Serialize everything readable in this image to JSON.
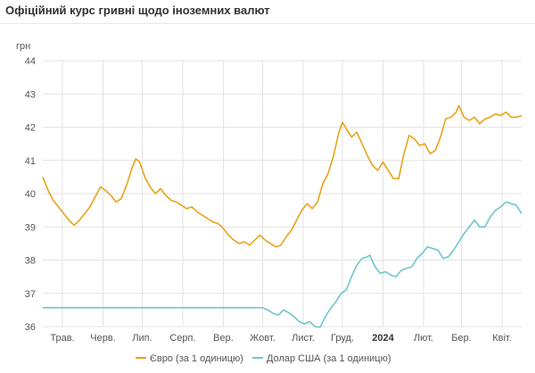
{
  "title": "Офіційний курс гривні щодо іноземних валют",
  "chart_data": {
    "type": "line",
    "ylabel": "грн",
    "ylim": [
      36,
      44
    ],
    "yticks": [
      36,
      37,
      38,
      39,
      40,
      41,
      42,
      43,
      44
    ],
    "xlim": [
      0,
      366
    ],
    "x_ticks": [
      {
        "x": 15,
        "label": "Трав.",
        "bold": false
      },
      {
        "x": 46,
        "label": "Черв.",
        "bold": false
      },
      {
        "x": 76,
        "label": "Лип.",
        "bold": false
      },
      {
        "x": 107,
        "label": "Серп.",
        "bold": false
      },
      {
        "x": 138,
        "label": "Вер.",
        "bold": false
      },
      {
        "x": 168,
        "label": "Жовт.",
        "bold": false
      },
      {
        "x": 199,
        "label": "Лист.",
        "bold": false
      },
      {
        "x": 229,
        "label": "Груд.",
        "bold": false
      },
      {
        "x": 260,
        "label": "2024",
        "bold": true
      },
      {
        "x": 291,
        "label": "Лют.",
        "bold": false
      },
      {
        "x": 320,
        "label": "Бер.",
        "bold": false
      },
      {
        "x": 351,
        "label": "Квіт.",
        "bold": false
      }
    ],
    "grid": true,
    "legend_position": "bottom",
    "series": [
      {
        "name": "Євро (за 1 одиницю)",
        "color": "#e8a317",
        "points": [
          [
            0,
            40.5
          ],
          [
            4,
            40.1
          ],
          [
            8,
            39.8
          ],
          [
            12,
            39.6
          ],
          [
            16,
            39.4
          ],
          [
            20,
            39.2
          ],
          [
            24,
            39.05
          ],
          [
            28,
            39.2
          ],
          [
            32,
            39.4
          ],
          [
            36,
            39.6
          ],
          [
            40,
            39.9
          ],
          [
            44,
            40.2
          ],
          [
            48,
            40.1
          ],
          [
            52,
            39.95
          ],
          [
            56,
            39.75
          ],
          [
            60,
            39.85
          ],
          [
            64,
            40.25
          ],
          [
            68,
            40.75
          ],
          [
            71,
            41.05
          ],
          [
            74,
            40.95
          ],
          [
            78,
            40.5
          ],
          [
            82,
            40.2
          ],
          [
            86,
            40.0
          ],
          [
            90,
            40.15
          ],
          [
            94,
            39.95
          ],
          [
            98,
            39.8
          ],
          [
            102,
            39.75
          ],
          [
            106,
            39.65
          ],
          [
            110,
            39.55
          ],
          [
            114,
            39.6
          ],
          [
            118,
            39.45
          ],
          [
            122,
            39.35
          ],
          [
            126,
            39.25
          ],
          [
            130,
            39.15
          ],
          [
            134,
            39.1
          ],
          [
            138,
            38.95
          ],
          [
            142,
            38.75
          ],
          [
            146,
            38.6
          ],
          [
            150,
            38.5
          ],
          [
            154,
            38.55
          ],
          [
            158,
            38.45
          ],
          [
            162,
            38.6
          ],
          [
            166,
            38.75
          ],
          [
            170,
            38.6
          ],
          [
            174,
            38.5
          ],
          [
            178,
            38.4
          ],
          [
            182,
            38.45
          ],
          [
            186,
            38.7
          ],
          [
            190,
            38.9
          ],
          [
            194,
            39.2
          ],
          [
            198,
            39.5
          ],
          [
            202,
            39.7
          ],
          [
            206,
            39.55
          ],
          [
            210,
            39.75
          ],
          [
            214,
            40.3
          ],
          [
            218,
            40.6
          ],
          [
            222,
            41.1
          ],
          [
            226,
            41.8
          ],
          [
            229,
            42.15
          ],
          [
            232,
            41.95
          ],
          [
            236,
            41.7
          ],
          [
            240,
            41.85
          ],
          [
            244,
            41.5
          ],
          [
            248,
            41.15
          ],
          [
            252,
            40.85
          ],
          [
            256,
            40.7
          ],
          [
            260,
            40.95
          ],
          [
            264,
            40.7
          ],
          [
            268,
            40.45
          ],
          [
            272,
            40.45
          ],
          [
            276,
            41.2
          ],
          [
            280,
            41.75
          ],
          [
            284,
            41.65
          ],
          [
            288,
            41.45
          ],
          [
            292,
            41.5
          ],
          [
            296,
            41.2
          ],
          [
            300,
            41.3
          ],
          [
            304,
            41.7
          ],
          [
            308,
            42.25
          ],
          [
            312,
            42.3
          ],
          [
            316,
            42.45
          ],
          [
            318,
            42.65
          ],
          [
            322,
            42.3
          ],
          [
            326,
            42.2
          ],
          [
            330,
            42.3
          ],
          [
            334,
            42.1
          ],
          [
            338,
            42.25
          ],
          [
            342,
            42.3
          ],
          [
            346,
            42.4
          ],
          [
            350,
            42.35
          ],
          [
            354,
            42.45
          ],
          [
            358,
            42.3
          ],
          [
            362,
            42.3
          ],
          [
            366,
            42.35
          ]
        ]
      },
      {
        "name": "Долар США (за 1 одиницю)",
        "color": "#6fc6c8",
        "points": [
          [
            0,
            36.57
          ],
          [
            40,
            36.57
          ],
          [
            80,
            36.57
          ],
          [
            120,
            36.57
          ],
          [
            160,
            36.57
          ],
          [
            168,
            36.57
          ],
          [
            172,
            36.5
          ],
          [
            176,
            36.4
          ],
          [
            180,
            36.35
          ],
          [
            184,
            36.5
          ],
          [
            188,
            36.42
          ],
          [
            192,
            36.3
          ],
          [
            196,
            36.15
          ],
          [
            200,
            36.08
          ],
          [
            204,
            36.15
          ],
          [
            208,
            36.0
          ],
          [
            212,
            35.98
          ],
          [
            216,
            36.3
          ],
          [
            220,
            36.55
          ],
          [
            224,
            36.75
          ],
          [
            228,
            37.0
          ],
          [
            232,
            37.1
          ],
          [
            236,
            37.5
          ],
          [
            240,
            37.85
          ],
          [
            244,
            38.05
          ],
          [
            248,
            38.1
          ],
          [
            250,
            38.15
          ],
          [
            254,
            37.8
          ],
          [
            258,
            37.6
          ],
          [
            262,
            37.65
          ],
          [
            266,
            37.55
          ],
          [
            270,
            37.5
          ],
          [
            274,
            37.7
          ],
          [
            278,
            37.75
          ],
          [
            282,
            37.8
          ],
          [
            286,
            38.05
          ],
          [
            290,
            38.2
          ],
          [
            294,
            38.4
          ],
          [
            298,
            38.35
          ],
          [
            302,
            38.3
          ],
          [
            306,
            38.05
          ],
          [
            310,
            38.1
          ],
          [
            314,
            38.3
          ],
          [
            318,
            38.55
          ],
          [
            322,
            38.8
          ],
          [
            326,
            39.0
          ],
          [
            330,
            39.2
          ],
          [
            334,
            39.0
          ],
          [
            338,
            39.0
          ],
          [
            342,
            39.3
          ],
          [
            346,
            39.5
          ],
          [
            350,
            39.6
          ],
          [
            354,
            39.75
          ],
          [
            358,
            39.7
          ],
          [
            362,
            39.65
          ],
          [
            366,
            39.4
          ]
        ]
      }
    ]
  }
}
